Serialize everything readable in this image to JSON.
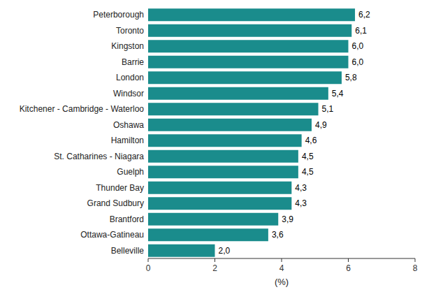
{
  "chart_data": {
    "type": "bar",
    "orientation": "horizontal",
    "categories": [
      "Belleville",
      "Ottawa-Gatineau",
      "Brantford",
      "Grand Sudbury",
      "Thunder Bay",
      "Guelph",
      "St. Catharines - Niagara",
      "Hamilton",
      "Oshawa",
      "Kitchener - Cambridge - Waterloo",
      "Windsor",
      "London",
      "Barrie",
      "Kingston",
      "Toronto",
      "Peterborough"
    ],
    "values": [
      2.0,
      3.6,
      3.9,
      4.3,
      4.3,
      4.5,
      4.5,
      4.6,
      4.9,
      5.1,
      5.4,
      5.8,
      6.0,
      6.0,
      6.1,
      6.2
    ],
    "value_labels": [
      "2,0",
      "3,6",
      "3,9",
      "4,3",
      "4,3",
      "4,5",
      "4,5",
      "4,6",
      "4,9",
      "5,1",
      "5,4",
      "5,8",
      "6,0",
      "6,0",
      "6,1",
      "6,2"
    ],
    "data_labels": true,
    "color": "#1a8c8c",
    "xlabel": "(%)",
    "xlim": [
      0,
      8
    ],
    "xticks": [
      0,
      2,
      4,
      6,
      8
    ],
    "grid": false
  }
}
